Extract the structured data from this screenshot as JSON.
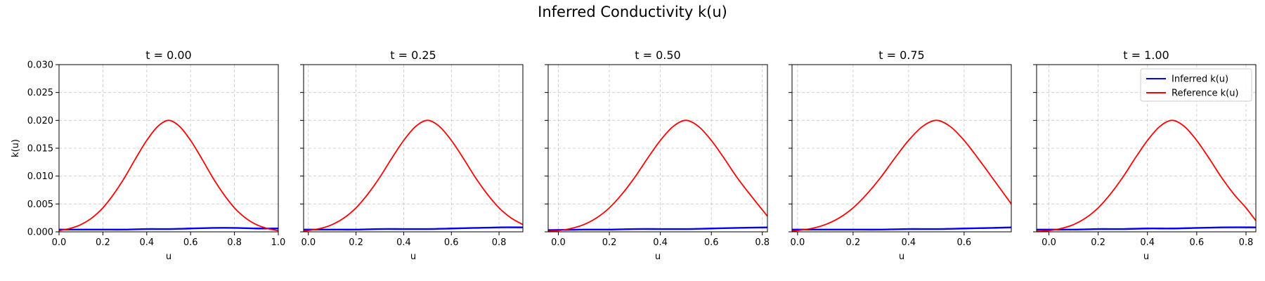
{
  "figure": {
    "title": "Inferred Conductivity k(u)"
  },
  "colors": {
    "inferred": "#0000ff",
    "reference": "#ff0000"
  },
  "chart_data": [
    {
      "type": "line",
      "title": "t = 0.00",
      "xlabel": "u",
      "ylabel": "k(u)",
      "xlim": [
        0.0,
        1.0
      ],
      "ylim": [
        0.0,
        0.03
      ],
      "xticks": [
        "0.0",
        "0.2",
        "0.4",
        "0.6",
        "0.8",
        "1.0"
      ],
      "yticks": [
        "0.000",
        "0.005",
        "0.010",
        "0.015",
        "0.020",
        "0.025",
        "0.030"
      ],
      "grid": true,
      "series": [
        {
          "name": "Inferred k(u)",
          "x": [
            0.0,
            0.1,
            0.2,
            0.3,
            0.4,
            0.5,
            0.6,
            0.7,
            0.8,
            0.9,
            1.0
          ],
          "y": [
            0.0004,
            0.0004,
            0.0004,
            0.0004,
            0.0005,
            0.0005,
            0.0006,
            0.0007,
            0.0007,
            0.0006,
            0.0006
          ]
        },
        {
          "name": "Reference k(u)",
          "x": [
            0.0,
            0.05,
            0.1,
            0.15,
            0.2,
            0.25,
            0.3,
            0.35,
            0.4,
            0.45,
            0.5,
            0.55,
            0.6,
            0.65,
            0.7,
            0.75,
            0.8,
            0.85,
            0.9,
            0.95,
            1.0
          ],
          "y": [
            0.0002,
            0.0006,
            0.0013,
            0.0025,
            0.0043,
            0.0068,
            0.0098,
            0.0132,
            0.0164,
            0.0189,
            0.02,
            0.0189,
            0.0164,
            0.0132,
            0.0098,
            0.0068,
            0.0043,
            0.0025,
            0.0013,
            0.0006,
            0.0002
          ]
        }
      ]
    },
    {
      "type": "line",
      "title": "t = 0.25",
      "xlabel": "u",
      "ylabel": "",
      "xlim": [
        -0.02,
        0.9
      ],
      "ylim": [
        0.0,
        0.03
      ],
      "xticks": [
        "0.0",
        "0.2",
        "0.4",
        "0.6",
        "0.8"
      ],
      "yticks": [],
      "grid": true,
      "series": [
        {
          "name": "Inferred k(u)",
          "x": [
            -0.02,
            0.1,
            0.2,
            0.3,
            0.4,
            0.5,
            0.6,
            0.7,
            0.8,
            0.9
          ],
          "y": [
            0.0004,
            0.0004,
            0.0004,
            0.0005,
            0.0005,
            0.0005,
            0.0006,
            0.0007,
            0.0008,
            0.0008
          ]
        },
        {
          "name": "Reference k(u)",
          "x": [
            -0.02,
            0.05,
            0.1,
            0.15,
            0.2,
            0.25,
            0.3,
            0.35,
            0.4,
            0.45,
            0.5,
            0.55,
            0.6,
            0.65,
            0.7,
            0.75,
            0.8,
            0.85,
            0.9
          ],
          "y": [
            0.0001,
            0.0006,
            0.0013,
            0.0025,
            0.0043,
            0.0068,
            0.0098,
            0.0132,
            0.0164,
            0.0189,
            0.02,
            0.0189,
            0.0164,
            0.0132,
            0.0098,
            0.0068,
            0.0043,
            0.0025,
            0.0013
          ]
        }
      ]
    },
    {
      "type": "line",
      "title": "t = 0.50",
      "xlabel": "u",
      "ylabel": "",
      "xlim": [
        -0.04,
        0.82
      ],
      "ylim": [
        0.0,
        0.03
      ],
      "xticks": [
        "0.0",
        "0.2",
        "0.4",
        "0.6",
        "0.8"
      ],
      "yticks": [],
      "grid": true,
      "series": [
        {
          "name": "Inferred k(u)",
          "x": [
            -0.04,
            0.1,
            0.2,
            0.3,
            0.4,
            0.5,
            0.6,
            0.7,
            0.82
          ],
          "y": [
            0.0003,
            0.0004,
            0.0004,
            0.0005,
            0.0005,
            0.0005,
            0.0006,
            0.0007,
            0.0008
          ]
        },
        {
          "name": "Reference k(u)",
          "x": [
            -0.04,
            0.0,
            0.05,
            0.1,
            0.15,
            0.2,
            0.25,
            0.3,
            0.35,
            0.4,
            0.45,
            0.5,
            0.55,
            0.6,
            0.65,
            0.7,
            0.75,
            0.82
          ],
          "y": [
            0.0001,
            0.0002,
            0.0006,
            0.0013,
            0.0025,
            0.0043,
            0.0068,
            0.0098,
            0.0132,
            0.0164,
            0.0189,
            0.02,
            0.0189,
            0.0164,
            0.0132,
            0.0098,
            0.0068,
            0.0028
          ]
        }
      ]
    },
    {
      "type": "line",
      "title": "t = 0.75",
      "xlabel": "u",
      "ylabel": "",
      "xlim": [
        -0.02,
        0.77
      ],
      "ylim": [
        0.0,
        0.03
      ],
      "xticks": [
        "0.0",
        "0.2",
        "0.4",
        "0.6"
      ],
      "yticks": [],
      "grid": true,
      "series": [
        {
          "name": "Inferred k(u)",
          "x": [
            -0.02,
            0.1,
            0.2,
            0.3,
            0.4,
            0.5,
            0.6,
            0.7,
            0.77
          ],
          "y": [
            0.0004,
            0.0004,
            0.0004,
            0.0004,
            0.0005,
            0.0005,
            0.0006,
            0.0007,
            0.0008
          ]
        },
        {
          "name": "Reference k(u)",
          "x": [
            -0.02,
            0.05,
            0.1,
            0.15,
            0.2,
            0.25,
            0.3,
            0.35,
            0.4,
            0.45,
            0.5,
            0.55,
            0.6,
            0.65,
            0.7,
            0.77
          ],
          "y": [
            0.0001,
            0.0006,
            0.0013,
            0.0025,
            0.0043,
            0.0068,
            0.0098,
            0.0132,
            0.0164,
            0.0189,
            0.02,
            0.0189,
            0.0164,
            0.0132,
            0.0098,
            0.005
          ]
        }
      ]
    },
    {
      "type": "line",
      "title": "t = 1.00",
      "xlabel": "u",
      "ylabel": "",
      "xlim": [
        -0.05,
        0.84
      ],
      "ylim": [
        0.0,
        0.03
      ],
      "xticks": [
        "0.0",
        "0.2",
        "0.4",
        "0.6",
        "0.8"
      ],
      "yticks": [],
      "grid": true,
      "legend": {
        "placement": "top-right",
        "entries": [
          "Inferred k(u)",
          "Reference k(u)"
        ]
      },
      "series": [
        {
          "name": "Inferred k(u)",
          "x": [
            -0.05,
            0.1,
            0.2,
            0.3,
            0.4,
            0.5,
            0.6,
            0.7,
            0.84
          ],
          "y": [
            0.0004,
            0.0004,
            0.0005,
            0.0005,
            0.0006,
            0.0006,
            0.0007,
            0.0008,
            0.0008
          ]
        },
        {
          "name": "Reference k(u)",
          "x": [
            -0.05,
            0.0,
            0.05,
            0.1,
            0.15,
            0.2,
            0.25,
            0.3,
            0.35,
            0.4,
            0.45,
            0.5,
            0.55,
            0.6,
            0.65,
            0.7,
            0.75,
            0.8,
            0.84
          ],
          "y": [
            0.0001,
            0.0002,
            0.0006,
            0.0013,
            0.0025,
            0.0043,
            0.0068,
            0.0098,
            0.0132,
            0.0164,
            0.0189,
            0.02,
            0.0189,
            0.0164,
            0.0132,
            0.0098,
            0.0068,
            0.0043,
            0.002
          ]
        }
      ]
    }
  ]
}
